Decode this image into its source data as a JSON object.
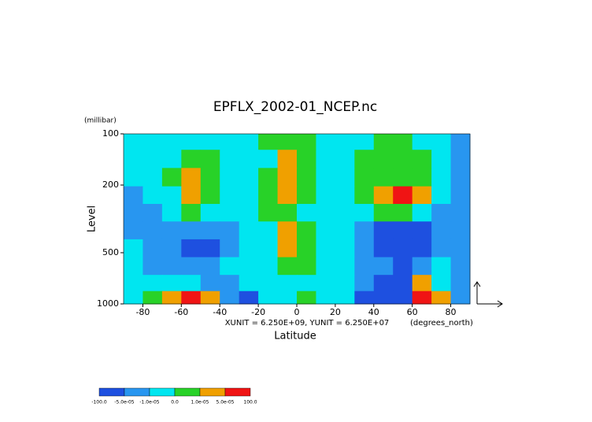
{
  "chart_data": {
    "type": "contour",
    "title": "EPFLX_2002-01_NCEP.nc",
    "y_unit_label": "(millibar)",
    "y_label": "Level",
    "x_label": "Latitude",
    "x_unit_label": "(degrees_north)",
    "vector_note": "XUNIT = 6.250E+09, YUNIT = 6.250E+07",
    "xlim": [
      -90,
      90
    ],
    "xticks": [
      -80,
      -60,
      -40,
      -20,
      0,
      20,
      40,
      60,
      80
    ],
    "ylim": [
      1000,
      100
    ],
    "yticks": [
      100,
      200,
      500,
      1000
    ],
    "log_y": true,
    "x": [
      -85,
      -75,
      -65,
      -55,
      -45,
      -35,
      -25,
      -15,
      -5,
      5,
      15,
      25,
      35,
      45,
      55,
      65,
      75,
      85
    ],
    "y": [
      110,
      140,
      180,
      230,
      290,
      370,
      470,
      600,
      760,
      930
    ],
    "z": [
      [
        -5e-06,
        -5e-06,
        -5e-06,
        -5e-06,
        -5e-06,
        -5e-06,
        -5e-06,
        5e-06,
        5e-06,
        5e-06,
        -5e-06,
        -5e-06,
        -5e-06,
        5e-06,
        5e-06,
        -5e-06,
        -5e-06,
        -3e-05
      ],
      [
        -5e-06,
        -5e-06,
        -5e-06,
        5e-06,
        5e-06,
        -5e-06,
        -5e-06,
        -5e-06,
        3e-05,
        5e-06,
        -5e-06,
        -5e-06,
        5e-06,
        5e-06,
        5e-06,
        5e-06,
        -5e-06,
        -3e-05
      ],
      [
        -5e-06,
        -5e-06,
        5e-06,
        3e-05,
        5e-06,
        -5e-06,
        -5e-06,
        5e-06,
        3e-05,
        5e-06,
        -5e-06,
        -5e-06,
        5e-06,
        5e-06,
        5e-06,
        5e-06,
        -5e-06,
        -3e-05
      ],
      [
        -3e-05,
        -5e-06,
        -5e-06,
        3e-05,
        5e-06,
        -5e-06,
        -5e-06,
        5e-06,
        3e-05,
        5e-06,
        -5e-06,
        -5e-06,
        5e-06,
        3e-05,
        0.0002,
        3e-05,
        -5e-06,
        -3e-05
      ],
      [
        -3e-05,
        -3e-05,
        -5e-06,
        5e-06,
        -5e-06,
        -5e-06,
        -5e-06,
        5e-06,
        5e-06,
        -5e-06,
        -5e-06,
        -5e-06,
        -5e-06,
        5e-06,
        5e-06,
        -5e-06,
        -3e-05,
        -3e-05
      ],
      [
        -3e-05,
        -3e-05,
        -3e-05,
        -3e-05,
        -3e-05,
        -3e-05,
        -5e-06,
        -5e-06,
        3e-05,
        5e-06,
        -5e-06,
        -5e-06,
        -3e-05,
        -8e-05,
        -8e-05,
        -8e-05,
        -3e-05,
        -3e-05
      ],
      [
        -5e-06,
        -3e-05,
        -3e-05,
        -8e-05,
        -8e-05,
        -3e-05,
        -5e-06,
        -5e-06,
        3e-05,
        5e-06,
        -5e-06,
        -5e-06,
        -3e-05,
        -8e-05,
        -8e-05,
        -8e-05,
        -3e-05,
        -3e-05
      ],
      [
        -5e-06,
        -3e-05,
        -3e-05,
        -3e-05,
        -3e-05,
        -5e-06,
        -5e-06,
        -5e-06,
        5e-06,
        5e-06,
        -5e-06,
        -5e-06,
        -3e-05,
        -3e-05,
        -8e-05,
        -3e-05,
        -5e-06,
        -3e-05
      ],
      [
        -5e-06,
        -5e-06,
        -5e-06,
        -5e-06,
        -3e-05,
        -3e-05,
        -5e-06,
        -5e-06,
        -5e-06,
        -5e-06,
        -5e-06,
        -5e-06,
        -3e-05,
        -8e-05,
        -8e-05,
        3e-05,
        -5e-06,
        -3e-05
      ],
      [
        -5e-06,
        5e-06,
        3e-05,
        0.0002,
        3e-05,
        -3e-05,
        -8e-05,
        -5e-06,
        -5e-06,
        5e-06,
        -5e-06,
        -5e-06,
        -8e-05,
        -8e-05,
        -8e-05,
        0.0002,
        3e-05,
        -3e-05
      ]
    ],
    "levels": [
      {
        "value": -100,
        "label": "-100.0"
      },
      {
        "value": -5e-05,
        "label": "-5.0e-05"
      },
      {
        "value": -1e-05,
        "label": "-1.0e-05"
      },
      {
        "value": 0,
        "label": "0.0"
      },
      {
        "value": 1e-05,
        "label": "1.0e-05"
      },
      {
        "value": 5e-05,
        "label": "5.0e-05"
      },
      {
        "value": 100,
        "label": "100.0"
      }
    ],
    "colors": [
      "#1e50e0",
      "#2896f0",
      "#00e6f0",
      "#28d228",
      "#f0a000",
      "#f01414"
    ]
  }
}
